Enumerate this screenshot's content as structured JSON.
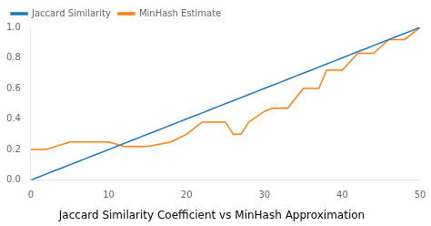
{
  "chart_data": {
    "type": "line",
    "title": "Jaccard Similarity Coefficient vs MinHash Approximation",
    "series": [
      {
        "name": "Jaccard Similarity",
        "color": "#1f77b4",
        "x": [
          0,
          1,
          2,
          3,
          4,
          5,
          6,
          7,
          8,
          9,
          10,
          11,
          12,
          13,
          14,
          15,
          16,
          17,
          18,
          19,
          20,
          21,
          22,
          23,
          24,
          25,
          26,
          27,
          28,
          29,
          30,
          31,
          32,
          33,
          34,
          35,
          36,
          37,
          38,
          39,
          40,
          41,
          42,
          43,
          44,
          45,
          46,
          47,
          48,
          49,
          50
        ],
        "values": [
          0.0,
          0.02,
          0.04,
          0.06,
          0.08,
          0.1,
          0.12,
          0.14,
          0.16,
          0.18,
          0.2,
          0.22,
          0.24,
          0.26,
          0.28,
          0.3,
          0.32,
          0.34,
          0.36,
          0.38,
          0.4,
          0.42,
          0.44,
          0.46,
          0.48,
          0.5,
          0.52,
          0.54,
          0.56,
          0.58,
          0.6,
          0.62,
          0.64,
          0.66,
          0.68,
          0.7,
          0.72,
          0.74,
          0.76,
          0.78,
          0.8,
          0.82,
          0.84,
          0.86,
          0.88,
          0.9,
          0.92,
          0.94,
          0.96,
          0.98,
          1.0
        ]
      },
      {
        "name": "MinHash Estimate",
        "color": "#ff7f0e",
        "x": [
          0,
          2,
          5,
          10,
          12,
          15,
          18,
          20,
          22,
          25,
          26,
          27,
          28,
          30,
          31,
          33,
          35,
          37,
          38,
          40,
          42,
          44,
          46,
          48,
          50
        ],
        "values": [
          0.2,
          0.2,
          0.25,
          0.25,
          0.22,
          0.22,
          0.25,
          0.3,
          0.38,
          0.38,
          0.3,
          0.3,
          0.38,
          0.45,
          0.47,
          0.47,
          0.6,
          0.6,
          0.72,
          0.72,
          0.83,
          0.83,
          0.92,
          0.92,
          1.0
        ]
      }
    ],
    "xlim": [
      0,
      50
    ],
    "ylim": [
      0.0,
      1.0
    ],
    "xticks": [
      0,
      10,
      20,
      30,
      40,
      50
    ],
    "yticks": [
      {
        "value": 0.0,
        "label": "0.0"
      },
      0.2,
      0.4,
      0.6,
      0.8,
      {
        "value": 1.0,
        "label": "1.0"
      }
    ],
    "grid": false,
    "legend": "upper left"
  }
}
